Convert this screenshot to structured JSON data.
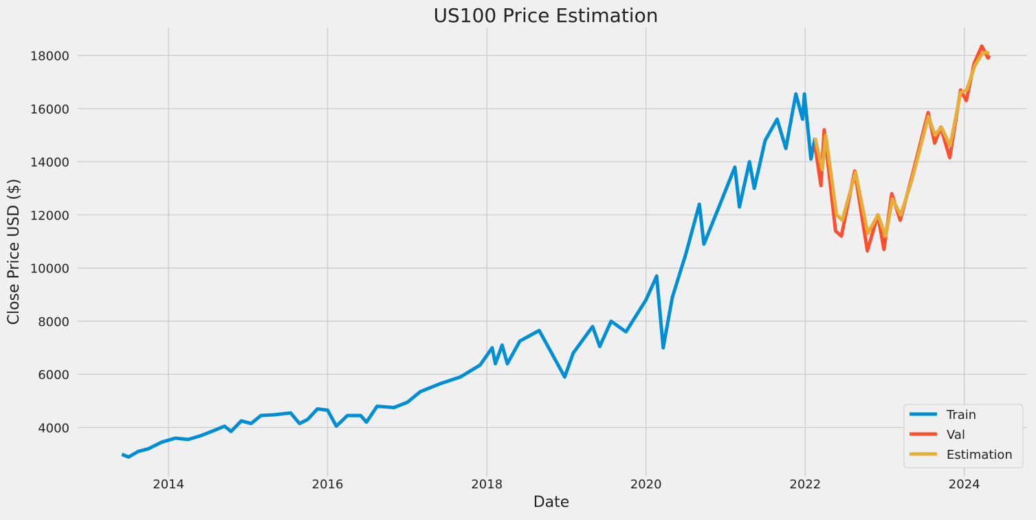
{
  "chart_data": {
    "type": "line",
    "title": "US100 Price Estimation",
    "xlabel": "Date",
    "ylabel": "Close Price USD ($)",
    "x_ticks": [
      "2014",
      "2016",
      "2018",
      "2020",
      "2022",
      "2024"
    ],
    "y_ticks": [
      "4000",
      "6000",
      "8000",
      "10000",
      "12000",
      "14000",
      "16000",
      "18000"
    ],
    "xlim": [
      "2012-11-10",
      "2024-10-15"
    ],
    "ylim": [
      2150,
      19050
    ],
    "grid": true,
    "legend": {
      "position": "bottom-right"
    },
    "series": [
      {
        "name": "Train",
        "color": "#008fd5",
        "points": [
          [
            "2013-06-01",
            2990
          ],
          [
            "2013-07-01",
            2890
          ],
          [
            "2013-08-15",
            3100
          ],
          [
            "2013-10-01",
            3200
          ],
          [
            "2013-12-01",
            3450
          ],
          [
            "2014-02-01",
            3600
          ],
          [
            "2014-04-01",
            3550
          ],
          [
            "2014-06-01",
            3700
          ],
          [
            "2014-08-01",
            3900
          ],
          [
            "2014-09-15",
            4050
          ],
          [
            "2014-10-15",
            3850
          ],
          [
            "2014-12-01",
            4250
          ],
          [
            "2015-01-15",
            4150
          ],
          [
            "2015-03-01",
            4450
          ],
          [
            "2015-05-01",
            4480
          ],
          [
            "2015-07-15",
            4550
          ],
          [
            "2015-08-25",
            4150
          ],
          [
            "2015-10-01",
            4300
          ],
          [
            "2015-11-15",
            4700
          ],
          [
            "2016-01-01",
            4650
          ],
          [
            "2016-02-10",
            4050
          ],
          [
            "2016-04-01",
            4450
          ],
          [
            "2016-06-01",
            4450
          ],
          [
            "2016-06-27",
            4200
          ],
          [
            "2016-08-15",
            4800
          ],
          [
            "2016-11-01",
            4750
          ],
          [
            "2017-01-01",
            4950
          ],
          [
            "2017-03-01",
            5350
          ],
          [
            "2017-06-01",
            5650
          ],
          [
            "2017-09-01",
            5900
          ],
          [
            "2017-12-01",
            6350
          ],
          [
            "2018-01-25",
            7000
          ],
          [
            "2018-02-09",
            6400
          ],
          [
            "2018-03-12",
            7100
          ],
          [
            "2018-04-05",
            6400
          ],
          [
            "2018-06-01",
            7250
          ],
          [
            "2018-08-29",
            7650
          ],
          [
            "2018-10-25",
            6800
          ],
          [
            "2018-12-24",
            5900
          ],
          [
            "2019-02-01",
            6800
          ],
          [
            "2019-05-01",
            7800
          ],
          [
            "2019-06-03",
            7050
          ],
          [
            "2019-07-25",
            8000
          ],
          [
            "2019-10-01",
            7600
          ],
          [
            "2020-01-01",
            8800
          ],
          [
            "2020-02-19",
            9700
          ],
          [
            "2020-03-20",
            7000
          ],
          [
            "2020-05-01",
            8900
          ],
          [
            "2020-07-01",
            10500
          ],
          [
            "2020-09-02",
            12400
          ],
          [
            "2020-09-23",
            10900
          ],
          [
            "2020-12-01",
            12300
          ],
          [
            "2021-02-12",
            13800
          ],
          [
            "2021-03-05",
            12300
          ],
          [
            "2021-04-20",
            14000
          ],
          [
            "2021-05-12",
            13000
          ],
          [
            "2021-07-01",
            14800
          ],
          [
            "2021-08-25",
            15600
          ],
          [
            "2021-10-04",
            14500
          ],
          [
            "2021-11-19",
            16550
          ],
          [
            "2021-12-20",
            15600
          ],
          [
            "2021-12-28",
            16550
          ],
          [
            "2022-01-27",
            14100
          ],
          [
            "2022-02-15",
            14900
          ]
        ]
      },
      {
        "name": "Val",
        "color": "#fc4f30",
        "points": [
          [
            "2022-02-15",
            14600
          ],
          [
            "2022-03-14",
            13100
          ],
          [
            "2022-03-29",
            15200
          ],
          [
            "2022-05-20",
            11400
          ],
          [
            "2022-06-16",
            11200
          ],
          [
            "2022-08-16",
            13650
          ],
          [
            "2022-10-13",
            10650
          ],
          [
            "2022-11-30",
            12000
          ],
          [
            "2022-12-28",
            10700
          ],
          [
            "2023-02-02",
            12800
          ],
          [
            "2023-03-13",
            11800
          ],
          [
            "2023-05-01",
            13300
          ],
          [
            "2023-07-19",
            15850
          ],
          [
            "2023-08-18",
            14700
          ],
          [
            "2023-09-15",
            15300
          ],
          [
            "2023-10-26",
            14150
          ],
          [
            "2023-12-15",
            16700
          ],
          [
            "2024-01-10",
            16300
          ],
          [
            "2024-02-15",
            17700
          ],
          [
            "2024-03-21",
            18350
          ],
          [
            "2024-04-19",
            17900
          ],
          [
            "2024-04-25",
            18000
          ]
        ]
      },
      {
        "name": "Estimation",
        "color": "#e5ae38",
        "points": [
          [
            "2022-02-15",
            14900
          ],
          [
            "2022-03-20",
            13700
          ],
          [
            "2022-04-05",
            15000
          ],
          [
            "2022-05-25",
            12000
          ],
          [
            "2022-06-20",
            11800
          ],
          [
            "2022-08-20",
            13600
          ],
          [
            "2022-10-15",
            11300
          ],
          [
            "2022-12-01",
            12000
          ],
          [
            "2023-01-05",
            11200
          ],
          [
            "2023-02-05",
            12600
          ],
          [
            "2023-03-15",
            12000
          ],
          [
            "2023-05-05",
            13300
          ],
          [
            "2023-07-20",
            15700
          ],
          [
            "2023-08-20",
            15000
          ],
          [
            "2023-09-18",
            15300
          ],
          [
            "2023-10-28",
            14600
          ],
          [
            "2023-12-15",
            16600
          ],
          [
            "2024-01-12",
            16700
          ],
          [
            "2024-02-18",
            17600
          ],
          [
            "2024-03-25",
            18100
          ],
          [
            "2024-04-25",
            18100
          ]
        ]
      }
    ]
  }
}
